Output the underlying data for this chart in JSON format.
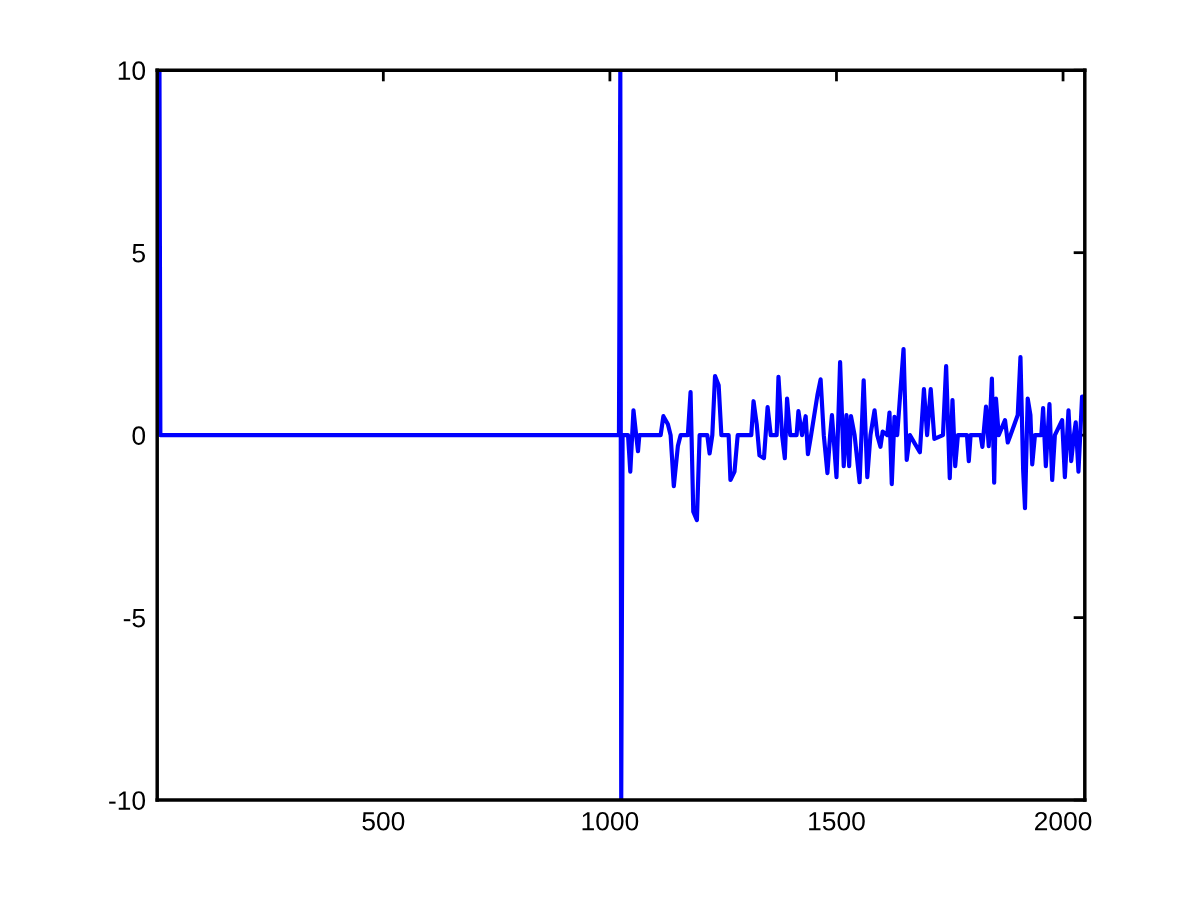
{
  "chart_data": {
    "type": "line",
    "x": [
      6,
      8,
      1020,
      1023,
      1025,
      1028,
      1040,
      1045,
      1052,
      1058,
      1062,
      1065,
      1112,
      1118,
      1128,
      1134,
      1141,
      1150,
      1156,
      1172,
      1178,
      1184,
      1192,
      1198,
      1215,
      1220,
      1226,
      1232,
      1240,
      1246,
      1262,
      1266,
      1275,
      1282,
      1312,
      1317,
      1324,
      1330,
      1340,
      1348,
      1355,
      1368,
      1372,
      1380,
      1386,
      1391,
      1398,
      1412,
      1416,
      1424,
      1432,
      1437,
      1444,
      1458,
      1465,
      1472,
      1480,
      1486,
      1490,
      1500,
      1508,
      1516,
      1522,
      1528,
      1532,
      1540,
      1551,
      1560,
      1568,
      1575,
      1584,
      1590,
      1597,
      1602,
      1612,
      1617,
      1622,
      1628,
      1634,
      1648,
      1655,
      1662,
      1684,
      1693,
      1700,
      1708,
      1716,
      1735,
      1742,
      1750,
      1756,
      1762,
      1768,
      1788,
      1792,
      1796,
      1818,
      1822,
      1830,
      1836,
      1843,
      1848,
      1852,
      1858,
      1872,
      1878,
      1884,
      1900,
      1906,
      1912,
      1916,
      1922,
      1928,
      1932,
      1938,
      1952,
      1956,
      1962,
      1970,
      1976,
      1982,
      1998,
      2004,
      2012,
      2018,
      2024,
      2028,
      2034,
      2042,
      2048
    ],
    "series": [
      {
        "color": "#0000ff",
        "values": [
          10,
          0,
          0,
          10,
          -10,
          0,
          0,
          -1.0,
          0.68,
          0,
          -0.44,
          0,
          0,
          0.52,
          0.3,
          0,
          -1.4,
          -0.3,
          0,
          0,
          1.18,
          -2.1,
          -2.33,
          0,
          0,
          -0.5,
          0,
          1.62,
          1.37,
          0,
          0,
          -1.23,
          -1.0,
          0,
          0,
          0.93,
          0.3,
          -0.55,
          -0.63,
          0.77,
          0,
          0,
          1.6,
          0,
          -0.63,
          1.0,
          0,
          0,
          0.66,
          0,
          0.52,
          -0.52,
          0,
          1.1,
          1.53,
          0,
          -1.04,
          0,
          0.55,
          -1.15,
          2.0,
          -0.85,
          0.55,
          -0.85,
          0.52,
          0,
          -1.29,
          1.5,
          -1.15,
          0,
          0.68,
          0,
          -0.32,
          0.1,
          0,
          0.62,
          -1.34,
          0.5,
          0,
          2.36,
          -0.68,
          0,
          -0.47,
          1.26,
          0,
          1.26,
          -0.1,
          0,
          1.89,
          -1.18,
          0.96,
          -0.85,
          0,
          0,
          -0.71,
          0,
          0,
          -0.32,
          0.78,
          -0.3,
          1.55,
          -1.3,
          1.0,
          0,
          0.41,
          -0.2,
          0,
          0.55,
          2.14,
          -0.98,
          -2.0,
          1.0,
          0.55,
          -0.8,
          0,
          0,
          0.74,
          -0.85,
          0.85,
          -1.23,
          0,
          0.41,
          -1.15,
          0.68,
          -0.71,
          0,
          0.35,
          -1.0,
          1.06,
          1.06
        ]
      }
    ],
    "xlim": [
      1,
      2048
    ],
    "xticks": [
      500,
      1000,
      1500,
      2000
    ],
    "ylim": [
      -10,
      10
    ],
    "yticks": [
      -10,
      -5,
      0,
      5,
      10
    ],
    "grid": false,
    "marker": "none",
    "line_style": "solid"
  }
}
